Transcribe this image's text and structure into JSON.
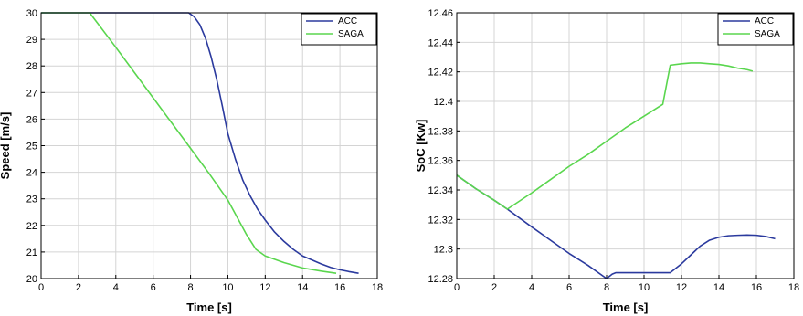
{
  "chart_data": [
    {
      "type": "line",
      "xlabel": "Time [s]",
      "ylabel": "Speed [m/s]",
      "xlim": [
        0,
        18
      ],
      "ylim": [
        20,
        30
      ],
      "xticks": [
        "0",
        "2",
        "4",
        "6",
        "8",
        "10",
        "12",
        "14",
        "16",
        "18"
      ],
      "yticks": [
        "20",
        "21",
        "22",
        "23",
        "24",
        "25",
        "26",
        "27",
        "28",
        "29",
        "30"
      ],
      "grid": true,
      "legend_position": "top-right",
      "series": [
        {
          "name": "ACC",
          "color": "#2b3a9e",
          "x": [
            0,
            2,
            4,
            6,
            7,
            7.9,
            8.2,
            8.5,
            8.8,
            9.1,
            9.4,
            9.7,
            10,
            10.4,
            10.8,
            11.2,
            11.6,
            12,
            12.5,
            13,
            13.5,
            14,
            14.5,
            15,
            15.5,
            16,
            16.5,
            17
          ],
          "y": [
            30,
            30,
            30,
            30,
            30,
            30,
            29.85,
            29.55,
            29.05,
            28.35,
            27.5,
            26.5,
            25.45,
            24.5,
            23.7,
            23.1,
            22.6,
            22.2,
            21.75,
            21.4,
            21.1,
            20.85,
            20.7,
            20.55,
            20.42,
            20.33,
            20.26,
            20.2
          ]
        },
        {
          "name": "SAGA",
          "color": "#5ad64e",
          "x": [
            0,
            1,
            2,
            2.6,
            3,
            4,
            5,
            6,
            7,
            8,
            9,
            10,
            11,
            11.5,
            12,
            13,
            14,
            15,
            15.8
          ],
          "y": [
            30,
            30,
            30,
            30,
            29.63,
            28.7,
            27.75,
            26.8,
            25.85,
            24.9,
            23.95,
            22.95,
            21.65,
            21.1,
            20.85,
            20.6,
            20.4,
            20.28,
            20.2
          ]
        }
      ]
    },
    {
      "type": "line",
      "xlabel": "Time [s]",
      "ylabel": "SoC [Kw]",
      "xlim": [
        0,
        18
      ],
      "ylim": [
        12.28,
        12.46
      ],
      "xticks": [
        "0",
        "2",
        "4",
        "6",
        "8",
        "10",
        "12",
        "14",
        "16",
        "18"
      ],
      "yticks": [
        "12.28",
        "12.3",
        "12.32",
        "12.34",
        "12.36",
        "12.38",
        "12.4",
        "12.42",
        "12.44",
        "12.46"
      ],
      "grid": true,
      "legend_position": "top-right",
      "series": [
        {
          "name": "ACC",
          "color": "#2b3a9e",
          "x": [
            0,
            1,
            2,
            2.7,
            4,
            5,
            6,
            7,
            8,
            8.3,
            8.5,
            9,
            10,
            11,
            11.4,
            12,
            12.5,
            13,
            13.5,
            14,
            14.5,
            15,
            15.5,
            16,
            16.5,
            17
          ],
          "y": [
            12.35,
            12.341,
            12.333,
            12.327,
            12.315,
            12.306,
            12.297,
            12.289,
            12.28,
            12.283,
            12.284,
            12.284,
            12.284,
            12.284,
            12.284,
            12.29,
            12.296,
            12.302,
            12.306,
            12.308,
            12.309,
            12.3093,
            12.3095,
            12.3093,
            12.3085,
            12.307
          ]
        },
        {
          "name": "SAGA",
          "color": "#5ad64e",
          "x": [
            0,
            1,
            2,
            2.7,
            4,
            5,
            6,
            7,
            8,
            9,
            10,
            11,
            11.4,
            12,
            12.5,
            13,
            13.5,
            14,
            14.5,
            15,
            15.5,
            15.8
          ],
          "y": [
            12.35,
            12.341,
            12.333,
            12.327,
            12.338,
            12.347,
            12.356,
            12.364,
            12.373,
            12.382,
            12.39,
            12.398,
            12.4245,
            12.4255,
            12.426,
            12.426,
            12.4255,
            12.425,
            12.424,
            12.4225,
            12.4215,
            12.4205
          ]
        }
      ]
    }
  ]
}
